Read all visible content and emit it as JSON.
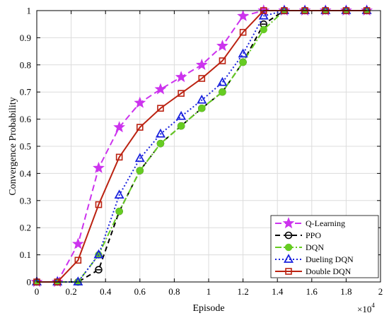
{
  "chart_data": {
    "type": "line",
    "xlabel": "Episode",
    "ylabel": "Convergence Probability",
    "x_multiplier_label": "×10",
    "x_multiplier_exp": "4",
    "xlim": [
      0,
      2
    ],
    "ylim": [
      0,
      1
    ],
    "xticks": [
      "0",
      "0.2",
      "0.4",
      "0.6",
      "0.8",
      "1",
      "1.2",
      "1.4",
      "1.6",
      "1.8",
      "2"
    ],
    "yticks": [
      "0",
      "0.1",
      "0.2",
      "0.3",
      "0.4",
      "0.5",
      "0.6",
      "0.7",
      "0.8",
      "0.9",
      "1"
    ],
    "grid": true,
    "legend_position": "bottom-right",
    "series": [
      {
        "name": "Q-Learning",
        "color": "#cc33ee",
        "dash": "9,5",
        "marker": "star",
        "x": [
          0,
          0.12,
          0.24,
          0.36,
          0.48,
          0.6,
          0.72,
          0.84,
          0.96,
          1.08,
          1.2,
          1.32,
          1.44,
          1.56,
          1.68,
          1.8,
          1.92
        ],
        "y": [
          0,
          0,
          0.14,
          0.42,
          0.57,
          0.66,
          0.71,
          0.755,
          0.8,
          0.87,
          0.98,
          1,
          1,
          1,
          1,
          1,
          1
        ]
      },
      {
        "name": "PPO",
        "color": "#000000",
        "dash": "7,5",
        "marker": "circle-bar",
        "x": [
          0,
          0.12,
          0.24,
          0.36,
          0.48,
          0.6,
          0.72,
          0.84,
          0.96,
          1.08,
          1.2,
          1.32,
          1.44,
          1.56,
          1.68,
          1.8,
          1.92
        ],
        "y": [
          0,
          0,
          0,
          0.045,
          0.26,
          0.41,
          0.51,
          0.575,
          0.64,
          0.7,
          0.81,
          0.95,
          1,
          1,
          1,
          1,
          1
        ]
      },
      {
        "name": "DQN",
        "color": "#66cc22",
        "dash": "9,3,2,3",
        "marker": "dot",
        "x": [
          0,
          0.12,
          0.24,
          0.36,
          0.48,
          0.6,
          0.72,
          0.84,
          0.96,
          1.08,
          1.2,
          1.32,
          1.44,
          1.56,
          1.68,
          1.8,
          1.92
        ],
        "y": [
          0,
          0,
          0,
          0.1,
          0.26,
          0.41,
          0.51,
          0.575,
          0.64,
          0.7,
          0.81,
          0.93,
          1,
          1,
          1,
          1,
          1
        ]
      },
      {
        "name": "Dueling DQN",
        "color": "#1a22dd",
        "dash": "2,3",
        "marker": "triangle",
        "x": [
          0,
          0.12,
          0.24,
          0.36,
          0.48,
          0.6,
          0.72,
          0.84,
          0.96,
          1.08,
          1.2,
          1.32,
          1.44,
          1.56,
          1.68,
          1.8,
          1.92
        ],
        "y": [
          0,
          0,
          0,
          0.1,
          0.32,
          0.455,
          0.545,
          0.61,
          0.67,
          0.735,
          0.84,
          0.98,
          1,
          1,
          1,
          1,
          1
        ]
      },
      {
        "name": "Double DQN",
        "color": "#bb2211",
        "dash": "",
        "marker": "square",
        "x": [
          0,
          0.12,
          0.24,
          0.36,
          0.48,
          0.6,
          0.72,
          0.84,
          0.96,
          1.08,
          1.2,
          1.32,
          1.44,
          1.56,
          1.68,
          1.8,
          1.92
        ],
        "y": [
          0,
          0,
          0.08,
          0.285,
          0.46,
          0.57,
          0.64,
          0.695,
          0.75,
          0.815,
          0.92,
          1,
          1,
          1,
          1,
          1,
          1
        ]
      }
    ]
  }
}
